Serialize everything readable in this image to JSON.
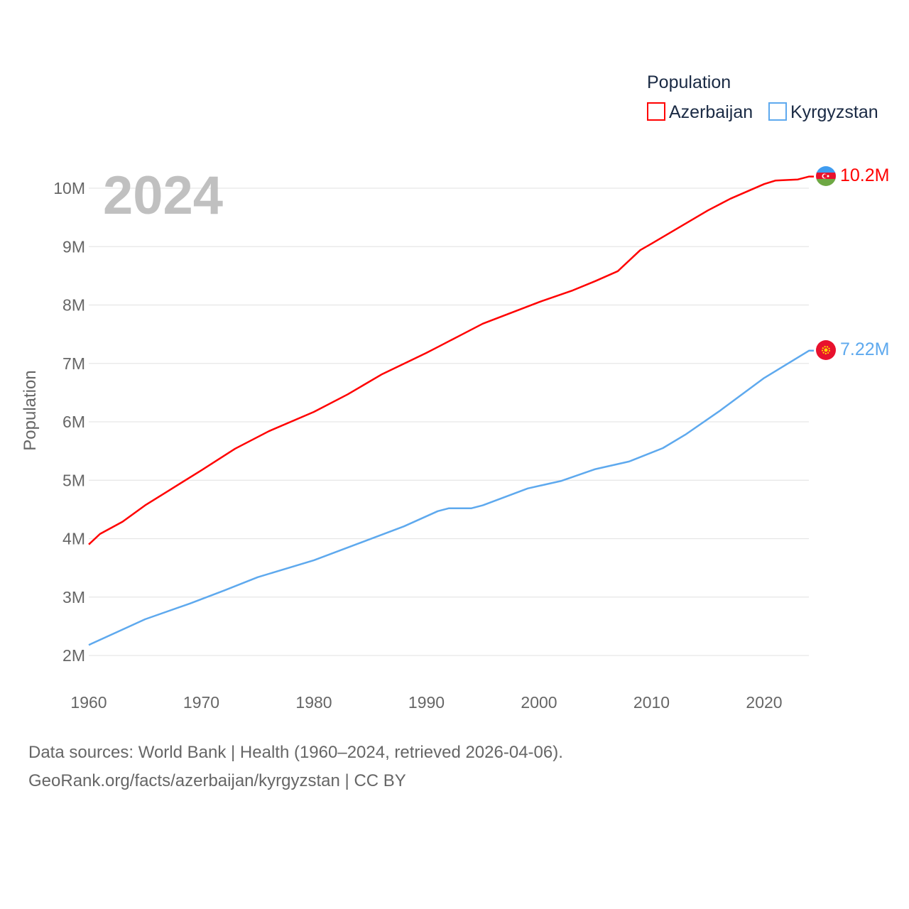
{
  "chart_data": {
    "type": "line",
    "title": "",
    "year_label": "2024",
    "ylabel": "Population",
    "xlabel": "",
    "xlim": [
      1960,
      2024
    ],
    "ylim": [
      2000000,
      10000000
    ],
    "x_ticks": [
      "1960",
      "1970",
      "1980",
      "1990",
      "2000",
      "2010",
      "2020"
    ],
    "x_tick_values": [
      1960,
      1970,
      1980,
      1990,
      2000,
      2010,
      2020
    ],
    "y_ticks": [
      "2M",
      "3M",
      "4M",
      "5M",
      "6M",
      "7M",
      "8M",
      "9M",
      "10M"
    ],
    "y_tick_values": [
      2,
      3,
      4,
      5,
      6,
      7,
      8,
      9,
      10
    ],
    "grid": true,
    "legend": {
      "title": "Population",
      "placement": "top-right"
    },
    "series": [
      {
        "name": "Azerbaijan",
        "color": "#ff0000",
        "end_label": "10.2M",
        "x": [
          1960,
          1961,
          1963,
          1965,
          1967,
          1970,
          1973,
          1976,
          1980,
          1983,
          1986,
          1990,
          1991,
          1993,
          1995,
          2000,
          2003,
          2005,
          2007,
          2009,
          2010,
          2015,
          2017,
          2020,
          2021,
          2023,
          2024
        ],
        "values": [
          3.9,
          4.08,
          4.29,
          4.57,
          4.81,
          5.17,
          5.54,
          5.84,
          6.17,
          6.47,
          6.81,
          7.18,
          7.28,
          7.48,
          7.68,
          8.05,
          8.25,
          8.41,
          8.58,
          8.94,
          9.05,
          9.62,
          9.82,
          10.07,
          10.13,
          10.15,
          10.2
        ]
      },
      {
        "name": "Kyrgyzstan",
        "color": "#5ea9ee",
        "end_label": "7.22M",
        "x": [
          1960,
          1965,
          1969,
          1972,
          1975,
          1980,
          1984,
          1988,
          1991,
          1992,
          1994,
          1995,
          1999,
          2002,
          2005,
          2008,
          2011,
          2013,
          2016,
          2020,
          2024
        ],
        "values": [
          2.18,
          2.62,
          2.89,
          3.11,
          3.34,
          3.63,
          3.92,
          4.21,
          4.47,
          4.52,
          4.52,
          4.57,
          4.86,
          4.99,
          5.19,
          5.32,
          5.55,
          5.78,
          6.18,
          6.75,
          7.22
        ]
      }
    ]
  },
  "footer": {
    "line1": "Data sources: World Bank | Health (1960–2024, retrieved 2026-04-06).",
    "line2": "GeoRank.org/facts/azerbaijan/kyrgyzstan | CC BY"
  }
}
